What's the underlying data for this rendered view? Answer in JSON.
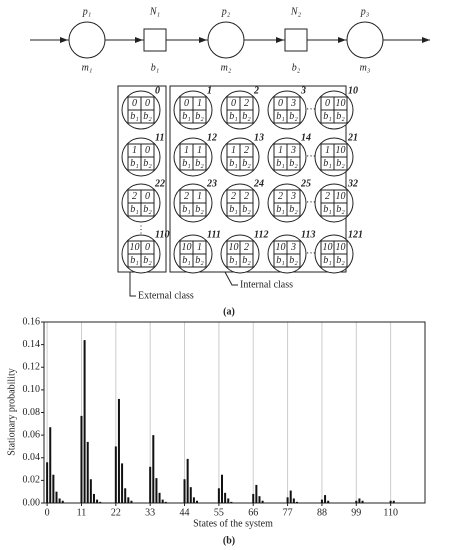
{
  "diagram": {
    "line": [
      {
        "top": "p₁",
        "bottom": "m₁"
      },
      {
        "top": "N₁",
        "bottom": "b₁"
      },
      {
        "top": "p₂",
        "bottom": "m₂"
      },
      {
        "top": "N₂",
        "bottom": "b₂"
      },
      {
        "top": "p₃",
        "bottom": "m₃"
      }
    ],
    "rows": [
      {
        "ellipsis": "···",
        "cells": [
          {
            "id": "0",
            "n": [
              "0",
              "0"
            ],
            "b": [
              "b₁",
              "b₂"
            ]
          },
          {
            "id": "1",
            "n": [
              "0",
              "1"
            ],
            "b": [
              "b₁",
              "b₂"
            ]
          },
          {
            "id": "2",
            "n": [
              "0",
              "2"
            ],
            "b": [
              "b₁",
              "b₂"
            ]
          },
          {
            "id": "3",
            "n": [
              "0",
              "3"
            ],
            "b": [
              "b₁",
              "b₂"
            ]
          },
          {
            "id": "10",
            "n": [
              "0",
              "10"
            ],
            "b": [
              "b₁",
              "b₂"
            ]
          }
        ]
      },
      {
        "ellipsis": "···",
        "cells": [
          {
            "id": "11",
            "n": [
              "1",
              "0"
            ],
            "b": [
              "b₁",
              "b₂"
            ]
          },
          {
            "id": "12",
            "n": [
              "1",
              "1"
            ],
            "b": [
              "b₁",
              "b₂"
            ]
          },
          {
            "id": "13",
            "n": [
              "1",
              "2"
            ],
            "b": [
              "b₁",
              "b₂"
            ]
          },
          {
            "id": "14",
            "n": [
              "1",
              "3"
            ],
            "b": [
              "b₁",
              "b₂"
            ]
          },
          {
            "id": "21",
            "n": [
              "1",
              "10"
            ],
            "b": [
              "b₁",
              "b₂"
            ]
          }
        ]
      },
      {
        "ellipsis": "···",
        "cells": [
          {
            "id": "22",
            "n": [
              "2",
              "0"
            ],
            "b": [
              "b₁",
              "b₂"
            ]
          },
          {
            "id": "23",
            "n": [
              "2",
              "1"
            ],
            "b": [
              "b₁",
              "b₂"
            ]
          },
          {
            "id": "24",
            "n": [
              "2",
              "2"
            ],
            "b": [
              "b₁",
              "b₂"
            ]
          },
          {
            "id": "25",
            "n": [
              "2",
              "3"
            ],
            "b": [
              "b₁",
              "b₂"
            ]
          },
          {
            "id": "32",
            "n": [
              "2",
              "10"
            ],
            "b": [
              "b₁",
              "b₂"
            ]
          }
        ]
      },
      {
        "ellipsis": "···",
        "cells": [
          {
            "id": "110",
            "n": [
              "10",
              "0"
            ],
            "b": [
              "b₁",
              "b₂"
            ]
          },
          {
            "id": "111",
            "n": [
              "10",
              "1"
            ],
            "b": [
              "b₁",
              "b₂"
            ]
          },
          {
            "id": "112",
            "n": [
              "10",
              "2"
            ],
            "b": [
              "b₁",
              "b₂"
            ]
          },
          {
            "id": "113",
            "n": [
              "10",
              "3"
            ],
            "b": [
              "b₁",
              "b₂"
            ]
          },
          {
            "id": "121",
            "n": [
              "10",
              "10"
            ],
            "b": [
              "b₁",
              "b₂"
            ]
          }
        ]
      }
    ],
    "vdots": "⋮",
    "external_label": "External class",
    "internal_label": "Internal class",
    "caption": "(a)"
  },
  "chart_data": {
    "type": "bar",
    "color": "#111111",
    "caption": "(b)",
    "x_label": "States of the system",
    "y_label": "Stationary probability",
    "x": [
      0,
      1,
      2,
      3,
      4,
      5,
      11,
      12,
      13,
      14,
      15,
      16,
      17,
      22,
      23,
      24,
      25,
      26,
      27,
      33,
      34,
      35,
      36,
      37,
      38,
      44,
      45,
      46,
      47,
      48,
      55,
      56,
      57,
      58,
      59,
      66,
      67,
      68,
      69,
      77,
      78,
      79,
      80,
      88,
      89,
      90,
      99,
      100,
      101,
      110,
      111
    ],
    "values": [
      0.036,
      0.067,
      0.025,
      0.01,
      0.004,
      0.002,
      0.077,
      0.144,
      0.054,
      0.021,
      0.008,
      0.003,
      0.001,
      0.05,
      0.092,
      0.035,
      0.013,
      0.005,
      0.002,
      0.032,
      0.06,
      0.022,
      0.009,
      0.003,
      0.001,
      0.021,
      0.039,
      0.014,
      0.005,
      0.002,
      0.013,
      0.025,
      0.009,
      0.004,
      0.001,
      0.008,
      0.016,
      0.006,
      0.002,
      0.005,
      0.011,
      0.004,
      0.001,
      0.003,
      0.007,
      0.002,
      0.002,
      0.004,
      0.002,
      0.002,
      0.002
    ],
    "xlim": [
      -1,
      121
    ],
    "ylim": [
      0,
      0.16
    ],
    "xticks": [
      0,
      11,
      22,
      33,
      44,
      55,
      66,
      77,
      88,
      99,
      110
    ],
    "yticks": [
      {
        "value": 0,
        "label": "0.00"
      },
      0.02,
      0.04,
      0.06,
      0.08,
      {
        "value": 0.1,
        "label": "0.10"
      },
      0.12,
      0.14,
      0.16
    ],
    "grid": true
  }
}
